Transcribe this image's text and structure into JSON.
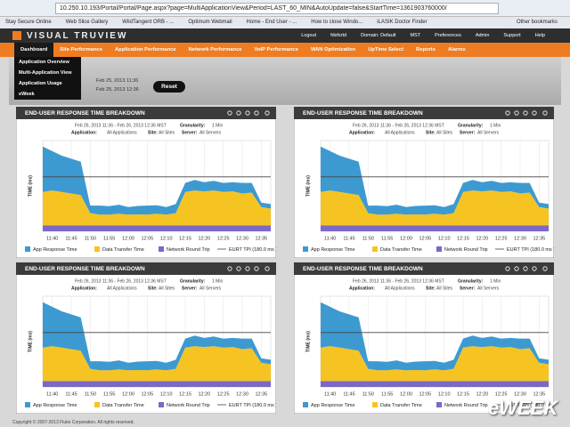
{
  "browser": {
    "url": "10.250.10.193/Portal/Portal/Page.aspx?page=MultiApplicationView&Period=LAST_60_MIN&AutoUpdate=false&StartTime=1361903760000/",
    "bookmarks": [
      "Stay Secure Online",
      "Web Slice Gallery",
      "WildTangent ORB - ...",
      "Optimum Webmail",
      "Home - End User - ...",
      "How to close Windo...",
      "iLASIK Doctor Finder"
    ],
    "other_bookmarks": "Other bookmarks"
  },
  "header": {
    "logo": "VISUAL TRUVIEW",
    "links": [
      "Logout",
      "fdsfsrtd",
      "Domain: Default",
      "MST",
      "Preferences",
      "Admin",
      "Support",
      "Help"
    ]
  },
  "nav": {
    "items": [
      "Dashboard",
      "Site Performance",
      "Application Performance",
      "Network Performance",
      "VoIP Performance",
      "WAN Optimization",
      "UpTime Select",
      "Reports",
      "Alarms"
    ]
  },
  "dropdown": {
    "items": [
      "Application Overview",
      "Multi-Application View",
      "Application Usage",
      "eWeek"
    ]
  },
  "timebar": {
    "start": "Feb 25, 2013 11:36",
    "end": "Feb 25, 2013 12:36",
    "button": "Reset"
  },
  "panels": [
    {
      "title": "END-USER RESPONSE TIME BREAKDOWN",
      "range": "Feb 26, 2013 11:36 - Feb 26, 2013 12:36 MST",
      "granularity_label": "Granularity:",
      "granularity": "1 Min",
      "filters": [
        {
          "label": "Application:",
          "value": "All Applications"
        },
        {
          "label": "Site:",
          "value": "All Sites"
        },
        {
          "label": "Server:",
          "value": "All Servers"
        }
      ]
    },
    {
      "title": "END-USER RESPONSE TIME BREAKDOWN",
      "range": "Feb 26, 2013 11:36 - Feb 26, 2013 12:36 MST",
      "granularity_label": "Granularity:",
      "granularity": "1 Min",
      "filters": [
        {
          "label": "Application:",
          "value": "All Applications"
        },
        {
          "label": "Site:",
          "value": "All Sites"
        },
        {
          "label": "Server:",
          "value": "All Servers"
        }
      ]
    },
    {
      "title": "END-USER RESPONSE TIME BREAKDOWN",
      "range": "Feb 26, 2013 11:36 - Feb 26, 2013 12:36 MST",
      "granularity_label": "Granularity:",
      "granularity": "1 Min",
      "filters": [
        {
          "label": "Application:",
          "value": "All Applications"
        },
        {
          "label": "Site:",
          "value": "All Sites"
        },
        {
          "label": "Server:",
          "value": "All Servers"
        }
      ]
    },
    {
      "title": "END-USER RESPONSE TIME BREAKDOWN",
      "range": "Feb 26, 2013 11:36 - Feb 26, 2013 12:36 MST",
      "granularity_label": "Granularity:",
      "granularity": "1 Min",
      "filters": [
        {
          "label": "Application:",
          "value": "All Applications"
        },
        {
          "label": "Site:",
          "value": "All Sites"
        },
        {
          "label": "Server:",
          "value": "All Servers"
        }
      ]
    }
  ],
  "chart_data": {
    "type": "stacked_area",
    "ylabel": "TIME (ms)",
    "ylim": [
      0,
      300
    ],
    "categories": [
      null,
      "11:40",
      null,
      "11:45",
      null,
      "11:50",
      null,
      "11:55",
      null,
      "12:00",
      null,
      "12:05",
      null,
      "12:10",
      null,
      "12:15",
      null,
      "12:20",
      null,
      "12:25",
      null,
      "12:30",
      null,
      "12:35",
      null
    ],
    "series": [
      {
        "name": "Network Round Trip",
        "color": "#7b68c8",
        "values": [
          20,
          20,
          20,
          20,
          20,
          20,
          20,
          20,
          20,
          20,
          20,
          20,
          20,
          20,
          20,
          20,
          20,
          20,
          20,
          20,
          20,
          20,
          20,
          20,
          20
        ]
      },
      {
        "name": "Data Transfer Time",
        "color": "#f5c422",
        "values": [
          110,
          115,
          110,
          105,
          100,
          40,
          35,
          35,
          38,
          35,
          36,
          35,
          38,
          35,
          40,
          110,
          115,
          112,
          115,
          110,
          112,
          105,
          108,
          60,
          55
        ]
      },
      {
        "name": "App Response Time",
        "color": "#3d9ad1",
        "values": [
          150,
          130,
          120,
          115,
          110,
          25,
          30,
          28,
          30,
          25,
          28,
          30,
          28,
          25,
          30,
          30,
          35,
          30,
          32,
          30,
          30,
          35,
          32,
          15,
          15
        ]
      }
    ],
    "legend_order": [
      2,
      1,
      0
    ],
    "threshold": {
      "name": "EURT TPI (180.0 ms )",
      "value": 180,
      "color": "#444444"
    }
  },
  "footer": "Copyright © 2007-2013 Fluke Corporation. All rights reserved.",
  "watermark": "eWEEK"
}
